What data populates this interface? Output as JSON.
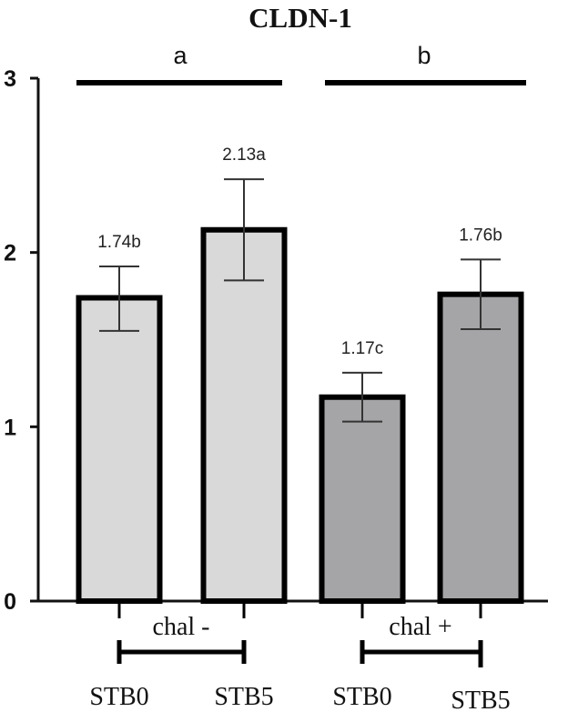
{
  "chart_data": {
    "type": "bar",
    "title": "CLDN-1",
    "categories": [
      "STB0",
      "STB5",
      "STB0",
      "STB5"
    ],
    "values": [
      1.74,
      2.13,
      1.17,
      1.76
    ],
    "error_upper": [
      1.92,
      2.42,
      1.31,
      1.96
    ],
    "error_lower": [
      1.55,
      1.84,
      1.03,
      1.56
    ],
    "value_labels": [
      "1.74b",
      "2.13a",
      "1.17c",
      "1.76b"
    ],
    "bar_colors": [
      "#d9d9d9",
      "#d9d9d9",
      "#a5a5a8",
      "#a5a5a8"
    ],
    "groups": [
      {
        "label": "chal -",
        "significance": "a"
      },
      {
        "label": "chal +",
        "significance": "b"
      }
    ],
    "ylim": [
      0,
      3
    ],
    "yticks": [
      0,
      1,
      2,
      3
    ],
    "xlabel": "",
    "ylabel": "",
    "grid": false
  }
}
